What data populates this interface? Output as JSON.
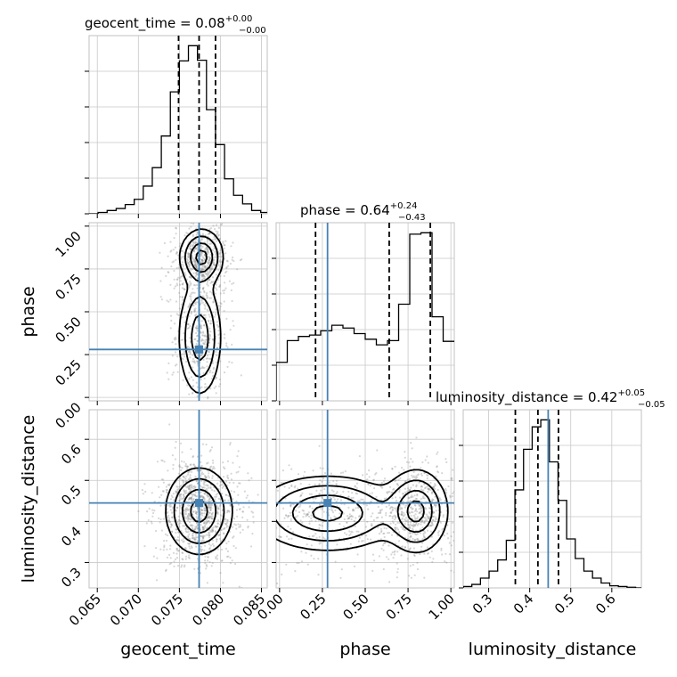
{
  "colors": {
    "truth": "#4682b4",
    "line": "#000000",
    "grid": "#c8c8c8",
    "scatter": "#8c8c8c",
    "frame": "#c0c0c0"
  },
  "chart_data": {
    "type": "corner",
    "parameters": [
      "geocent_time",
      "phase",
      "luminosity_distance"
    ],
    "titles": [
      {
        "param": "geocent_time",
        "main": "geocent_time = 0.08",
        "plus": "+0.00",
        "minus": "−0.00"
      },
      {
        "param": "phase",
        "main": "phase = 0.64",
        "plus": "+0.24",
        "minus": "−0.43"
      },
      {
        "param": "luminosity_distance",
        "main": "luminosity_distance = 0.42",
        "plus": "+0.05",
        "minus": "−0.05"
      }
    ],
    "axis_labels": {
      "x": [
        "geocent_time",
        "phase",
        "luminosity_distance"
      ],
      "y": [
        "phase",
        "luminosity_distance"
      ]
    },
    "ranges": {
      "geocent_time": [
        0.064,
        0.0857
      ],
      "phase": [
        -0.02,
        1.02
      ],
      "luminosity_distance": [
        0.238,
        0.672
      ]
    },
    "ticks": {
      "geocent_time": [
        0.065,
        0.07,
        0.075,
        0.08,
        0.085
      ],
      "phase": [
        0.0,
        0.25,
        0.5,
        0.75,
        1.0
      ],
      "luminosity_distance": [
        0.3,
        0.4,
        0.5,
        0.6
      ]
    },
    "tick_labels": {
      "geocent_time": [
        "0.065",
        "0.070",
        "0.075",
        "0.080",
        "0.085"
      ],
      "phase": [
        "0.00",
        "0.25",
        "0.50",
        "0.75",
        "1.00"
      ],
      "luminosity_distance": [
        "0.3",
        "0.4",
        "0.5",
        "0.6"
      ]
    },
    "truths": {
      "geocent_time": 0.0774,
      "phase": 0.28,
      "luminosity_distance": 0.445
    },
    "quantiles": {
      "geocent_time": [
        0.0749,
        0.0774,
        0.0794
      ],
      "phase": [
        0.21,
        0.64,
        0.88
      ],
      "luminosity_distance": [
        0.365,
        0.42,
        0.47
      ]
    },
    "histograms": {
      "geocent_time": {
        "edges": [
          0.064,
          0.0651,
          0.0662,
          0.0673,
          0.0684,
          0.0695,
          0.0706,
          0.0717,
          0.0728,
          0.0739,
          0.075,
          0.0761,
          0.0772,
          0.0783,
          0.0794,
          0.0805,
          0.0816,
          0.0827,
          0.0838,
          0.0849,
          0.0857
        ],
        "counts": [
          0,
          2,
          5,
          8,
          14,
          22,
          42,
          70,
          118,
          185,
          232,
          255,
          233,
          158,
          105,
          53,
          28,
          15,
          5,
          2
        ]
      },
      "phase": {
        "edges": [
          -0.02,
          0.045,
          0.11,
          0.175,
          0.24,
          0.305,
          0.37,
          0.435,
          0.5,
          0.565,
          0.63,
          0.695,
          0.76,
          0.825,
          0.89,
          0.955,
          1.02
        ],
        "counts": [
          55,
          86,
          92,
          94,
          100,
          108,
          104,
          96,
          88,
          80,
          86,
          138,
          238,
          240,
          120,
          85
        ]
      },
      "luminosity_distance": {
        "edges": [
          0.238,
          0.259,
          0.28,
          0.301,
          0.322,
          0.343,
          0.364,
          0.385,
          0.406,
          0.427,
          0.448,
          0.469,
          0.49,
          0.511,
          0.532,
          0.553,
          0.574,
          0.595,
          0.616,
          0.637,
          0.658,
          0.672
        ],
        "counts": [
          2,
          5,
          14,
          24,
          40,
          68,
          140,
          198,
          230,
          240,
          180,
          125,
          70,
          42,
          24,
          14,
          7,
          3,
          2,
          1,
          0
        ]
      }
    },
    "pairs": [
      {
        "x": "geocent_time",
        "y": "phase",
        "modes": [
          {
            "mx": 0.0777,
            "my": 0.82,
            "sx": 0.0013,
            "sy": 0.08,
            "w": 0.55
          },
          {
            "mx": 0.0775,
            "my": 0.35,
            "sx": 0.0013,
            "sy": 0.17,
            "w": 0.45
          }
        ]
      },
      {
        "x": "geocent_time",
        "y": "luminosity_distance",
        "modes": [
          {
            "mx": 0.0774,
            "my": 0.425,
            "sx": 0.002,
            "sy": 0.052,
            "w": 1.0
          }
        ]
      },
      {
        "x": "phase",
        "y": "luminosity_distance",
        "modes": [
          {
            "mx": 0.8,
            "my": 0.425,
            "sx": 0.09,
            "sy": 0.05,
            "w": 0.5
          },
          {
            "mx": 0.28,
            "my": 0.42,
            "sx": 0.21,
            "sy": 0.045,
            "w": 0.5
          }
        ]
      }
    ]
  }
}
